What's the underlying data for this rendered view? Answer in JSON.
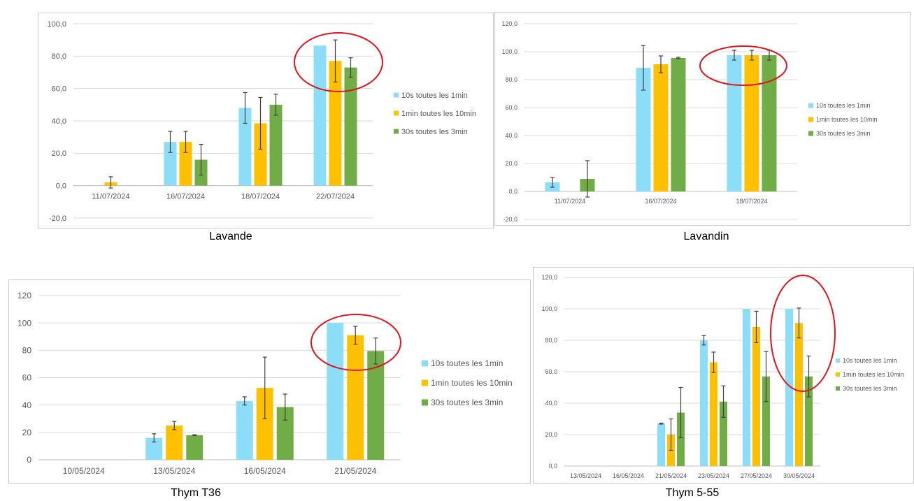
{
  "colors": {
    "series1": "#8CDDF7",
    "series2": "#FFC000",
    "series3": "#70AD47",
    "highlight": "#E0141E",
    "gridline": "#D9D9D9",
    "error_bar": "#404040"
  },
  "legend": [
    "10s toutes les 1min",
    "1min toutes les 10min",
    "30s toutes les 3min"
  ],
  "chart_data": [
    {
      "type": "bar",
      "caption": "Lavande",
      "categories": [
        "11/07/2024",
        "16/07/2024",
        "18/07/2024",
        "22/07/2024"
      ],
      "ylim": [
        -20,
        100
      ],
      "yticks": [
        "-20,0",
        "0,0",
        "20,0",
        "40,0",
        "60,0",
        "80,0",
        "100,0"
      ],
      "legend_position": "right",
      "grid": true,
      "series": [
        {
          "name": "10s toutes les 1min",
          "values": [
            null,
            27,
            48,
            86.5
          ],
          "errors": [
            null,
            6.5,
            9.5,
            null
          ]
        },
        {
          "name": "1min toutes les 10min",
          "values": [
            2,
            27,
            38.5,
            77
          ],
          "errors": [
            3.5,
            6.5,
            16,
            13
          ]
        },
        {
          "name": "30s toutes les 3min",
          "values": [
            null,
            16,
            50,
            73
          ],
          "errors": [
            null,
            9.5,
            6.5,
            6
          ]
        }
      ],
      "highlight_category": "22/07/2024"
    },
    {
      "type": "bar",
      "caption": "Lavandin",
      "categories": [
        "11/07/2024",
        "16/07/2024",
        "18/07/2024"
      ],
      "ylim": [
        -20,
        120
      ],
      "yticks": [
        "-20,0",
        "0,0",
        "20,0",
        "40,0",
        "60,0",
        "80,0",
        "100,0",
        "120,0"
      ],
      "legend_position": "right",
      "grid": true,
      "series": [
        {
          "name": "10s toutes les 1min",
          "values": [
            6.5,
            88.5,
            97.5
          ],
          "errors": [
            3.5,
            16,
            3.5
          ]
        },
        {
          "name": "1min toutes les 10min",
          "values": [
            null,
            91,
            97.5
          ],
          "errors": [
            null,
            6,
            3.5
          ]
        },
        {
          "name": "30s toutes les 3min",
          "values": [
            9,
            95.5,
            97.5
          ],
          "errors": [
            13,
            0.5,
            3.5
          ]
        }
      ],
      "highlight_category": "18/07/2024"
    },
    {
      "type": "bar",
      "caption": "Thym T36",
      "categories": [
        "10/05/2024",
        "13/05/2024",
        "16/05/2024",
        "21/05/2024"
      ],
      "ylim": [
        0,
        120
      ],
      "yticks": [
        "0",
        "20",
        "40",
        "60",
        "80",
        "100",
        "120"
      ],
      "legend_position": "right",
      "grid": true,
      "series": [
        {
          "name": "10s toutes les 1min",
          "values": [
            null,
            16,
            43,
            100
          ],
          "errors": [
            null,
            3,
            3,
            0
          ]
        },
        {
          "name": "1min toutes les 10min",
          "values": [
            null,
            25,
            52.5,
            91
          ],
          "errors": [
            null,
            3,
            22.5,
            6.5
          ]
        },
        {
          "name": "30s toutes les 3min",
          "values": [
            null,
            18,
            38.5,
            79.5
          ],
          "errors": [
            null,
            0.3,
            9.5,
            9.5
          ]
        }
      ],
      "highlight_category": "21/05/2024"
    },
    {
      "type": "bar",
      "caption": "Thym 5-55",
      "categories": [
        "13/05/2024",
        "16/05/2024",
        "21/05/2024",
        "23/05/2024",
        "27/05/2024",
        "30/05/2024"
      ],
      "ylim": [
        0,
        120
      ],
      "yticks": [
        "0,0",
        "20,0",
        "40,0",
        "60,0",
        "80,0",
        "100,0",
        "120,0"
      ],
      "legend_position": "right",
      "grid": true,
      "series": [
        {
          "name": "10s toutes les 1min",
          "values": [
            null,
            null,
            27,
            80,
            100,
            100
          ],
          "errors": [
            null,
            null,
            0.3,
            3,
            0,
            0
          ]
        },
        {
          "name": "1min toutes les 10min",
          "values": [
            null,
            null,
            20,
            66,
            88.5,
            91
          ],
          "errors": [
            null,
            null,
            10,
            6.5,
            10,
            9.5
          ]
        },
        {
          "name": "30s toutes les 3min",
          "values": [
            null,
            null,
            34,
            41,
            57,
            57
          ],
          "errors": [
            null,
            null,
            16,
            10,
            16,
            13
          ]
        }
      ],
      "highlight_category": "30/05/2024"
    }
  ]
}
